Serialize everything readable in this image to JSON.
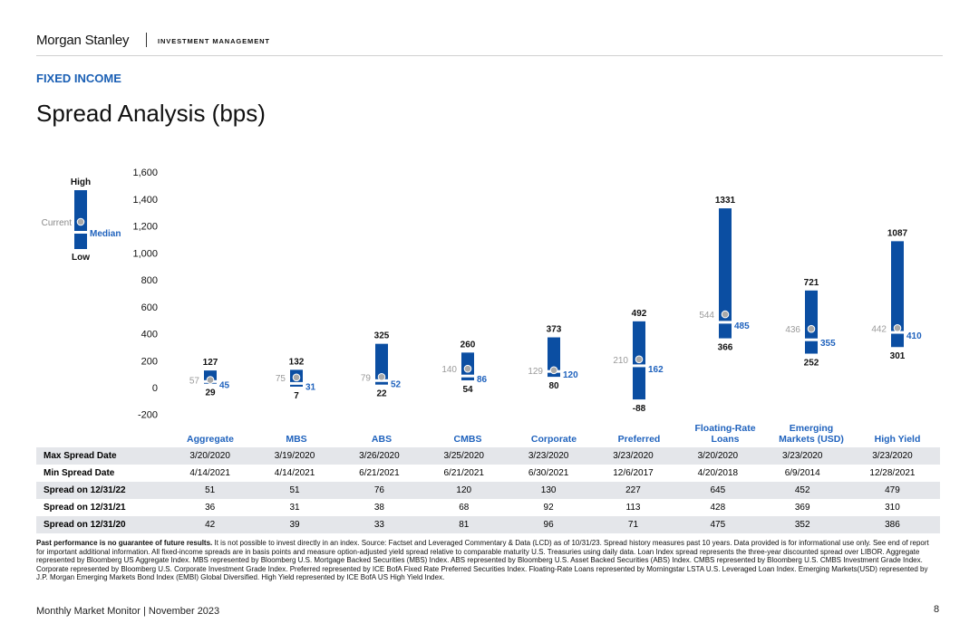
{
  "header": {
    "brand": "Morgan Stanley",
    "brand_sub": "INVESTMENT MANAGEMENT"
  },
  "section_label": "FIXED INCOME",
  "title": "Spread Analysis (bps)",
  "legend": {
    "high": "High",
    "low": "Low",
    "current": "Current",
    "median": "Median"
  },
  "chart_data": {
    "type": "range-bar",
    "title": "Spread Analysis (bps)",
    "y_ticks": [
      "1,600",
      "1,400",
      "1,200",
      "1,000",
      "800",
      "600",
      "400",
      "200",
      "0",
      "-200"
    ],
    "y_range": [
      -200,
      1600
    ],
    "grid": false,
    "legend_position": "top-left",
    "categories": [
      "Aggregate",
      "MBS",
      "ABS",
      "CMBS",
      "Corporate",
      "Preferred",
      "Floating-Rate Loans",
      "Emerging Markets (USD)",
      "High Yield"
    ],
    "category_lines": [
      [
        "Aggregate"
      ],
      [
        "MBS"
      ],
      [
        "ABS"
      ],
      [
        "CMBS"
      ],
      [
        "Corporate"
      ],
      [
        "Preferred"
      ],
      [
        "Floating-Rate",
        "Loans"
      ],
      [
        "Emerging",
        "Markets (USD)"
      ],
      [
        "High Yield"
      ]
    ],
    "high": [
      127,
      132,
      325,
      260,
      373,
      492,
      1331,
      721,
      1087
    ],
    "low": [
      29,
      7,
      22,
      54,
      80,
      -88,
      366,
      252,
      301
    ],
    "current": [
      57,
      75,
      79,
      140,
      129,
      210,
      544,
      436,
      442
    ],
    "median": [
      45,
      31,
      52,
      86,
      120,
      162,
      485,
      355,
      410
    ],
    "colors": {
      "bar": "#0b4ea2",
      "current": "#a9a9a9",
      "median_text": "#1f62bd"
    }
  },
  "table": {
    "rows": [
      {
        "label": "Max Spread Date",
        "values": [
          "3/20/2020",
          "3/19/2020",
          "3/26/2020",
          "3/25/2020",
          "3/23/2020",
          "3/23/2020",
          "3/20/2020",
          "3/23/2020",
          "3/23/2020"
        ]
      },
      {
        "label": "Min Spread Date",
        "values": [
          "4/14/2021",
          "4/14/2021",
          "6/21/2021",
          "6/21/2021",
          "6/30/2021",
          "12/6/2017",
          "4/20/2018",
          "6/9/2014",
          "12/28/2021"
        ]
      },
      {
        "label": "Spread on 12/31/22",
        "values": [
          "51",
          "51",
          "76",
          "120",
          "130",
          "227",
          "645",
          "452",
          "479"
        ]
      },
      {
        "label": "Spread on 12/31/21",
        "values": [
          "36",
          "31",
          "38",
          "68",
          "92",
          "113",
          "428",
          "369",
          "310"
        ]
      },
      {
        "label": "Spread on 12/31/20",
        "values": [
          "42",
          "39",
          "33",
          "81",
          "96",
          "71",
          "475",
          "352",
          "386"
        ]
      }
    ]
  },
  "footnote": {
    "bold": "Past performance is no guarantee of future results.",
    "text": " It is not possible to invest directly in an index. Source: Factset and Leveraged Commentary & Data (LCD) as of 10/31/23. Spread history measures past 10 years. Data provided is for informational use only. See end of report for important additional information. All fixed-income spreads are in basis points and measure option-adjusted yield spread relative to comparable maturity U.S. Treasuries using daily data. Loan Index spread represents the three-year discounted spread over LIBOR. Aggregate represented by Bloomberg US Aggregate Index. MBS represented by Bloomberg U.S. Mortgage Backed Securities (MBS) Index. ABS represented by Bloomberg U.S. Asset Backed Securities (ABS) Index. CMBS represented by Bloomberg U.S. CMBS Investment Grade Index. Corporate represented by Bloomberg U.S. Corporate Investment Grade Index. Preferred represented by ICE BofA Fixed Rate Preferred Securities Index. Floating-Rate Loans represented by Morningstar LSTA U.S. Leveraged Loan Index. Emerging Markets(USD) represented by J.P. Morgan Emerging Markets Bond Index (EMBI) Global Diversified. High Yield represented by ICE BofA US High Yield Index."
  },
  "footer": {
    "left": "Monthly Market Monitor | November 2023",
    "page": "8"
  }
}
